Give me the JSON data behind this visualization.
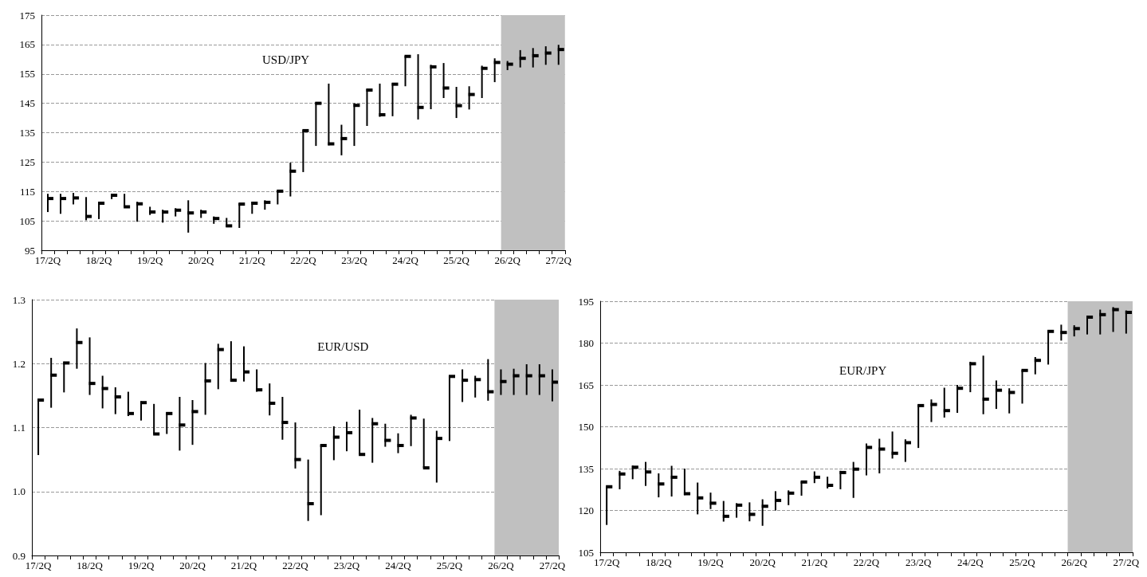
{
  "chart_data": [
    {
      "type": "scatter",
      "title": "USD/JPY",
      "categories": [
        "17/2Q",
        null,
        null,
        null,
        "18/2Q",
        null,
        null,
        null,
        "19/2Q",
        null,
        null,
        null,
        "20/2Q",
        null,
        null,
        null,
        "21/2Q",
        null,
        null,
        null,
        "22/2Q",
        null,
        null,
        null,
        "23/2Q",
        null,
        null,
        null,
        "24/2Q",
        null,
        null,
        null,
        "25/2Q",
        null,
        null,
        null,
        "26/2Q",
        null,
        null,
        null,
        "27/2Q"
      ],
      "series": [
        {
          "color": "#000000",
          "values": [
            112.6,
            112.6,
            112.8,
            106.5,
            111.0,
            113.7,
            109.8,
            110.8,
            108.0,
            108.0,
            108.6,
            107.7,
            108.0,
            105.8,
            103.3,
            110.7,
            111.0,
            111.3,
            115.1,
            121.9,
            135.7,
            145.0,
            131.2,
            133.0,
            144.3,
            149.5,
            141.1,
            151.5,
            161.0,
            143.6,
            157.4,
            150.2,
            144.2,
            148.0,
            156.9,
            158.9,
            158.3,
            160.3,
            161.2,
            162.1,
            163.3
          ],
          "errors": [
            [
              108.0,
              114.2
            ],
            [
              107.4,
              114.2
            ],
            [
              110.6,
              114.5
            ],
            [
              105.2,
              113.1
            ],
            [
              105.6,
              111.5
            ],
            [
              112.4,
              114.2
            ],
            [
              109.7,
              114.2
            ],
            [
              104.7,
              111.5
            ],
            [
              107.0,
              109.8
            ],
            [
              104.4,
              108.8
            ],
            [
              106.5,
              109.3
            ],
            [
              101.0,
              112.0
            ],
            [
              106.0,
              108.8
            ],
            [
              104.0,
              106.5
            ],
            [
              102.9,
              106.0
            ],
            [
              102.6,
              111.0
            ],
            [
              107.4,
              111.5
            ],
            [
              108.8,
              112.0
            ],
            [
              110.6,
              115.5
            ],
            [
              113.3,
              124.8
            ],
            [
              121.6,
              135.9
            ],
            [
              130.5,
              145.4
            ],
            [
              130.7,
              151.7
            ],
            [
              127.3,
              137.7
            ],
            [
              130.5,
              145.0
            ],
            [
              137.3,
              149.9
            ],
            [
              140.4,
              151.7
            ],
            [
              140.6,
              151.9
            ],
            [
              150.8,
              161.2
            ],
            [
              139.5,
              161.7
            ],
            [
              143.0,
              158.1
            ],
            [
              146.8,
              158.7
            ],
            [
              140.0,
              150.6
            ],
            [
              142.9,
              150.8
            ],
            [
              146.8,
              157.8
            ],
            [
              152.2,
              160.3
            ],
            [
              156.3,
              159.4
            ],
            [
              157.2,
              163.1
            ],
            [
              157.2,
              163.8
            ],
            [
              158.1,
              164.4
            ],
            [
              158.1,
              164.9
            ]
          ]
        }
      ],
      "ylim": [
        95,
        175
      ],
      "yticks": [
        95,
        105,
        115,
        125,
        135,
        145,
        155,
        165,
        175
      ],
      "grid": "y",
      "bands": [
        {
          "axis": "x",
          "from": "26/2Q",
          "to": "27/2Q",
          "color": "#c0c0c0"
        }
      ]
    },
    {
      "type": "scatter",
      "title": "EUR/USD",
      "categories": [
        "17/2Q",
        null,
        null,
        null,
        "18/2Q",
        null,
        null,
        null,
        "19/2Q",
        null,
        null,
        null,
        "20/2Q",
        null,
        null,
        null,
        "21/2Q",
        null,
        null,
        null,
        "22/2Q",
        null,
        null,
        null,
        "23/2Q",
        null,
        null,
        null,
        "24/2Q",
        null,
        null,
        null,
        "25/2Q",
        null,
        null,
        null,
        "26/2Q",
        null,
        null,
        null,
        "27/2Q"
      ],
      "series": [
        {
          "color": "#000000",
          "values": [
            1.143,
            1.182,
            1.201,
            1.233,
            1.169,
            1.161,
            1.148,
            1.122,
            1.139,
            1.09,
            1.122,
            1.104,
            1.125,
            1.173,
            1.222,
            1.174,
            1.187,
            1.159,
            1.138,
            1.108,
            1.05,
            0.981,
            1.072,
            1.085,
            1.092,
            1.058,
            1.106,
            1.08,
            1.072,
            1.115,
            1.037,
            1.083,
            1.18,
            1.174,
            1.175,
            1.156,
            1.172,
            1.181,
            1.181,
            1.181,
            1.171
          ],
          "errors": [
            [
              1.057,
              1.143
            ],
            [
              1.131,
              1.209
            ],
            [
              1.155,
              1.203
            ],
            [
              1.192,
              1.255
            ],
            [
              1.151,
              1.241
            ],
            [
              1.13,
              1.181
            ],
            [
              1.121,
              1.163
            ],
            [
              1.118,
              1.156
            ],
            [
              1.111,
              1.141
            ],
            [
              1.09,
              1.137
            ],
            [
              1.09,
              1.124
            ],
            [
              1.064,
              1.148
            ],
            [
              1.073,
              1.143
            ],
            [
              1.12,
              1.201
            ],
            [
              1.16,
              1.231
            ],
            [
              1.172,
              1.235
            ],
            [
              1.172,
              1.227
            ],
            [
              1.156,
              1.191
            ],
            [
              1.119,
              1.169
            ],
            [
              1.081,
              1.148
            ],
            [
              1.036,
              1.108
            ],
            [
              0.954,
              1.05
            ],
            [
              0.963,
              1.073
            ],
            [
              1.049,
              1.102
            ],
            [
              1.063,
              1.109
            ],
            [
              1.058,
              1.128
            ],
            [
              1.045,
              1.115
            ],
            [
              1.07,
              1.106
            ],
            [
              1.06,
              1.091
            ],
            [
              1.071,
              1.12
            ],
            [
              1.037,
              1.114
            ],
            [
              1.014,
              1.095
            ],
            [
              1.079,
              1.181
            ],
            [
              1.14,
              1.191
            ],
            [
              1.147,
              1.181
            ],
            [
              1.142,
              1.207
            ],
            [
              1.151,
              1.191
            ],
            [
              1.151,
              1.192
            ],
            [
              1.151,
              1.199
            ],
            [
              1.151,
              1.199
            ],
            [
              1.141,
              1.191
            ]
          ]
        }
      ],
      "ylim": [
        0.9,
        1.3
      ],
      "yticks": [
        0.9,
        {
          "value": 1,
          "label": "1.0"
        },
        1.1,
        1.2,
        1.3
      ],
      "grid": "y",
      "bands": [
        {
          "axis": "x",
          "from": "26/2Q",
          "to": "27/2Q",
          "color": "#c0c0c0"
        }
      ]
    },
    {
      "type": "scatter",
      "title": "EUR/JPY",
      "categories": [
        "17/2Q",
        null,
        null,
        null,
        "18/2Q",
        null,
        null,
        null,
        "19/2Q",
        null,
        null,
        null,
        "20/2Q",
        null,
        null,
        null,
        "21/2Q",
        null,
        null,
        null,
        "22/2Q",
        null,
        null,
        null,
        "23/2Q",
        null,
        null,
        null,
        "24/2Q",
        null,
        null,
        null,
        "25/2Q",
        null,
        null,
        null,
        "26/2Q",
        null,
        null,
        null,
        "27/2Q"
      ],
      "series": [
        {
          "color": "#000000",
          "values": [
            128.5,
            133.1,
            135.5,
            133.8,
            129.5,
            131.9,
            126.0,
            124.5,
            122.6,
            117.9,
            121.9,
            118.6,
            121.5,
            123.6,
            126.2,
            130.2,
            131.9,
            129.0,
            133.6,
            134.8,
            142.6,
            142.0,
            140.5,
            144.3,
            157.6,
            158.0,
            155.8,
            163.8,
            172.6,
            159.9,
            163.1,
            162.3,
            170.2,
            173.8,
            184.2,
            183.8,
            185.2,
            189.3,
            190.2,
            192.0,
            191.0
          ],
          "errors": [
            [
              114.8,
              128.5
            ],
            [
              127.6,
              134.2
            ],
            [
              131.2,
              136.1
            ],
            [
              128.8,
              137.4
            ],
            [
              124.7,
              133.3
            ],
            [
              125.0,
              136.0
            ],
            [
              125.5,
              135.0
            ],
            [
              118.6,
              130.0
            ],
            [
              120.5,
              126.4
            ],
            [
              116.0,
              123.4
            ],
            [
              117.4,
              122.6
            ],
            [
              116.1,
              122.9
            ],
            [
              114.5,
              124.0
            ],
            [
              120.0,
              126.9
            ],
            [
              121.9,
              127.2
            ],
            [
              125.3,
              130.4
            ],
            [
              129.8,
              134.0
            ],
            [
              127.9,
              132.1
            ],
            [
              127.6,
              134.2
            ],
            [
              124.5,
              137.4
            ],
            [
              132.6,
              144.0
            ],
            [
              133.3,
              145.7
            ],
            [
              138.6,
              148.3
            ],
            [
              137.4,
              145.5
            ],
            [
              142.4,
              157.9
            ],
            [
              151.7,
              159.8
            ],
            [
              153.3,
              164.0
            ],
            [
              155.0,
              165.0
            ],
            [
              162.4,
              173.3
            ],
            [
              154.5,
              175.5
            ],
            [
              156.4,
              166.6
            ],
            [
              154.8,
              163.8
            ],
            [
              158.3,
              170.4
            ],
            [
              168.8,
              175.0
            ],
            [
              172.3,
              184.5
            ],
            [
              180.9,
              186.6
            ],
            [
              182.4,
              186.4
            ],
            [
              183.1,
              189.8
            ],
            [
              183.1,
              192.0
            ],
            [
              184.0,
              192.9
            ],
            [
              183.4,
              191.7
            ]
          ]
        }
      ],
      "ylim": [
        105,
        195
      ],
      "yticks": [
        105,
        120,
        135,
        150,
        165,
        180,
        195
      ],
      "grid": "y",
      "bands": [
        {
          "axis": "x",
          "from": "26/2Q",
          "to": "27/2Q",
          "color": "#c0c0c0"
        }
      ]
    }
  ]
}
